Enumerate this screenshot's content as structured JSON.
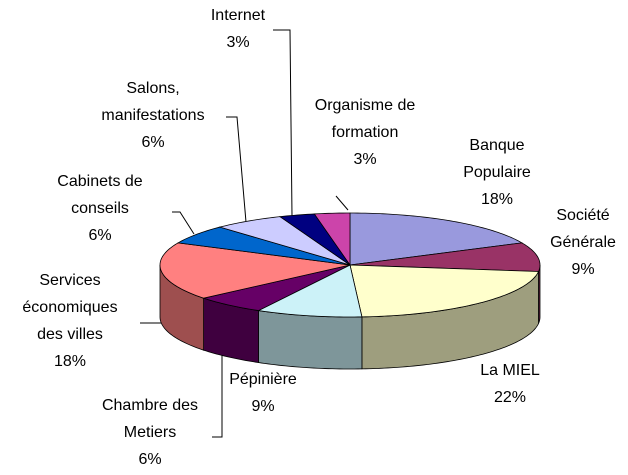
{
  "chart_data": {
    "type": "pie3d",
    "categories": [
      "Banque\nPopulaire",
      "Société\nGénérale",
      "La MIEL",
      "Pépinière",
      "Chambre des\nMetiers",
      "Services\néconomiques\ndes villes",
      "Cabinets de\nconseils",
      "Salons,\nmanifestations",
      "Internet",
      "Organisme de\nformation"
    ],
    "values": [
      18,
      9,
      22,
      9,
      6,
      18,
      6,
      6,
      3,
      3
    ],
    "value_labels": [
      "18%",
      "9%",
      "22%",
      "9%",
      "6%",
      "18%",
      "6%",
      "6%",
      "3%",
      "3%"
    ],
    "colors": [
      "#9999dd",
      "#993366",
      "#ffffcc",
      "#ccf2f8",
      "#660066",
      "#ff8080",
      "#0066cc",
      "#ccccff",
      "#000080",
      "#cc44aa"
    ]
  }
}
